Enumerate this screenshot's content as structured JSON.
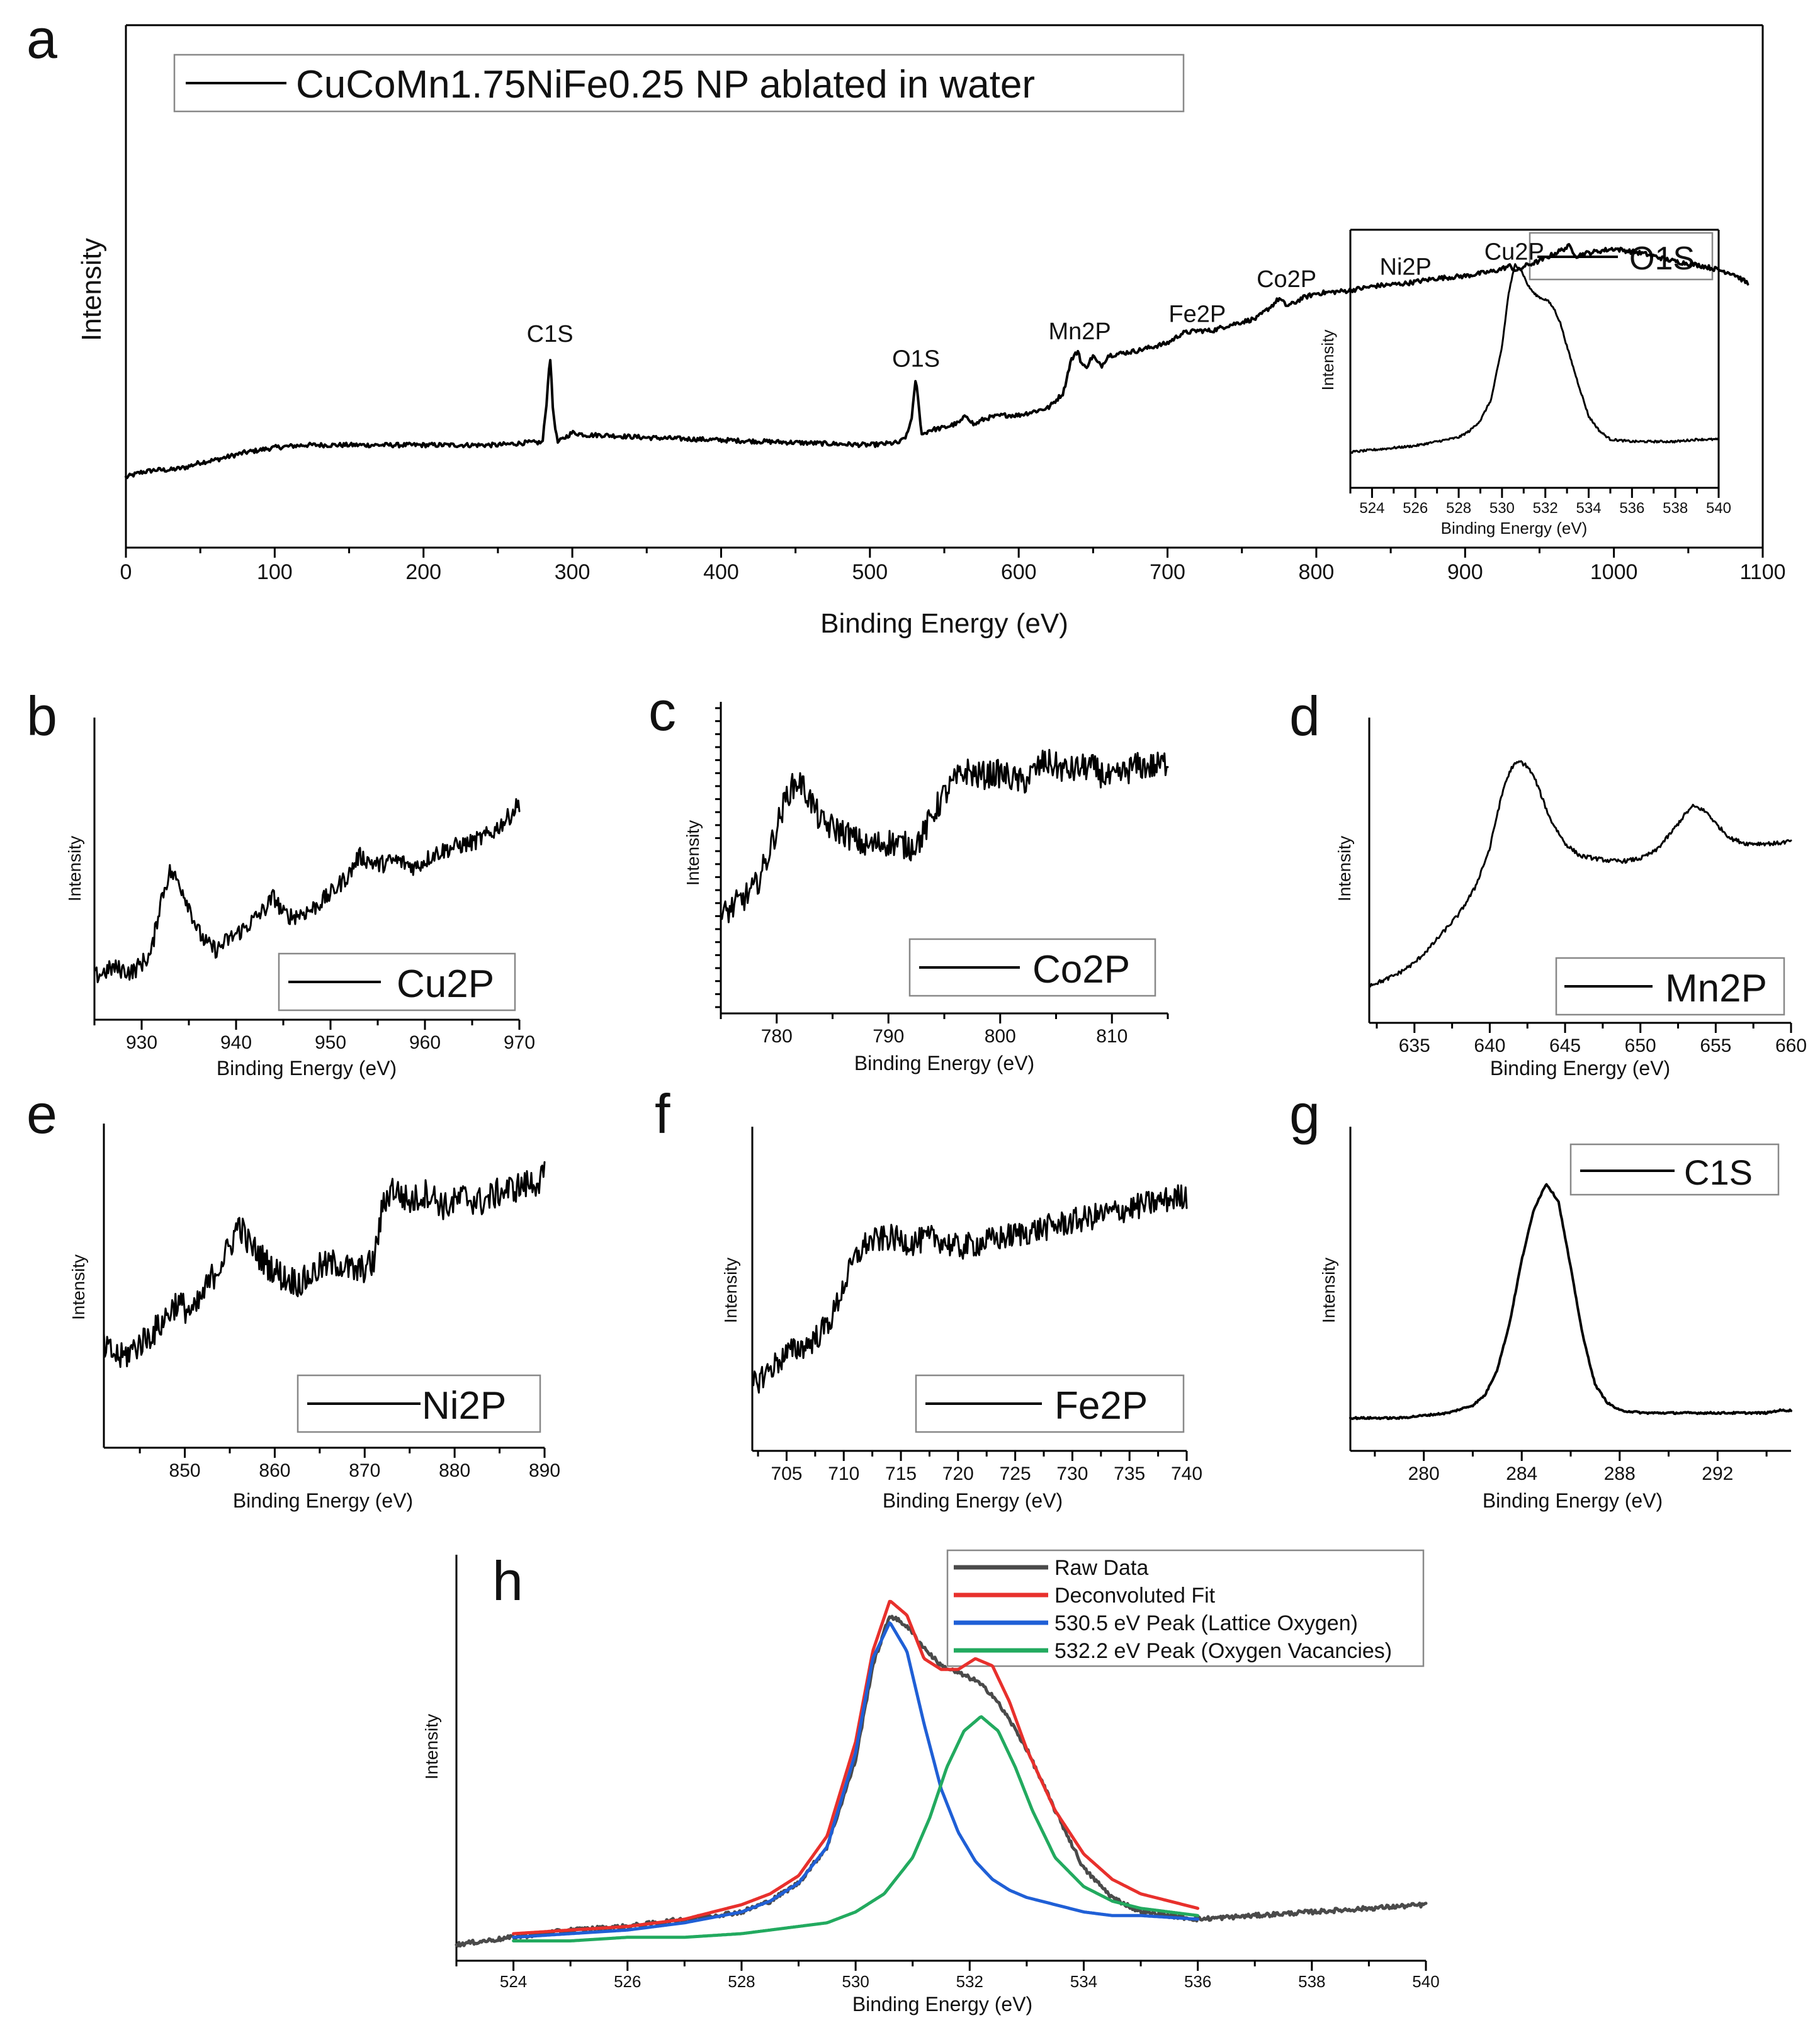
{
  "figure": {
    "panels": [
      {
        "id": "a",
        "letter": "a",
        "x_label": "Binding Energy (eV)",
        "y_label": "Intensity",
        "legend": "CuCoMn1.75NiFe0.25 NP ablated in water"
      },
      {
        "id": "a_inset",
        "x_label": "Binding Energy (eV)",
        "y_label": "Intensity",
        "legend": "O1S"
      },
      {
        "id": "b",
        "letter": "b",
        "x_label": "Binding Energy (eV)",
        "y_label": "Intensity",
        "legend": "Cu2P"
      },
      {
        "id": "c",
        "letter": "c",
        "x_label": "Binding Energy (eV)",
        "y_label": "Intensity",
        "legend": "Co2P"
      },
      {
        "id": "d",
        "letter": "d",
        "x_label": "Binding Energy (eV)",
        "y_label": "Intensity",
        "legend": "Mn2P"
      },
      {
        "id": "e",
        "letter": "e",
        "x_label": "Binding Energy (eV)",
        "y_label": "Intensity",
        "legend": "Ni2P"
      },
      {
        "id": "f",
        "letter": "f",
        "x_label": "Binding Energy (eV)",
        "y_label": "Intensity",
        "legend": "Fe2P"
      },
      {
        "id": "g",
        "letter": "g",
        "x_label": "Binding Energy (eV)",
        "y_label": "Intensity",
        "legend": "C1S"
      },
      {
        "id": "h",
        "letter": "h",
        "x_label": "Binding Energy (eV)",
        "y_label": "Intensity",
        "legend_entries": [
          "Raw Data",
          "Deconvoluted Fit",
          "530.5 eV Peak (Lattice Oxygen)",
          "532.2 eV Peak (Oxygen Vacancies)"
        ]
      }
    ]
  },
  "colors": {
    "raw_data": "#4a4a4a",
    "fit": "#e8302c",
    "lattice_oxygen": "#1f5fd6",
    "oxygen_vacancies": "#22aa5f",
    "trace": "#000000"
  },
  "chart_data": [
    {
      "panel": "a",
      "type": "line",
      "title": "",
      "xlabel": "Binding Energy (eV)",
      "ylabel": "Intensity",
      "xlim": [
        0,
        1100
      ],
      "xticks": [
        0,
        100,
        200,
        300,
        400,
        500,
        600,
        700,
        800,
        900,
        1000,
        1100
      ],
      "ylim": [
        0,
        100
      ],
      "legend": "CuCoMn1.75NiFe0.25 NP ablated in water",
      "annotations": [
        {
          "text": "C1S",
          "x": 285,
          "y": 58
        },
        {
          "text": "O1S",
          "x": 531,
          "y": 48
        },
        {
          "text": "Mn2P",
          "x": 641,
          "y": 59
        },
        {
          "text": "Fe2P",
          "x": 720,
          "y": 66
        },
        {
          "text": "Co2P",
          "x": 780,
          "y": 80
        },
        {
          "text": "Ni2P",
          "x": 860,
          "y": 85
        },
        {
          "text": "Cu2P",
          "x": 933,
          "y": 91
        }
      ],
      "x": [
        0,
        10,
        20,
        30,
        40,
        50,
        60,
        80,
        100,
        120,
        150,
        200,
        250,
        270,
        280,
        283,
        285,
        287,
        290,
        295,
        300,
        310,
        320,
        350,
        400,
        450,
        500,
        520,
        525,
        528,
        531,
        533,
        535,
        540,
        550,
        560,
        565,
        570,
        575,
        580,
        590,
        600,
        620,
        630,
        635,
        640,
        642,
        645,
        650,
        653,
        656,
        660,
        680,
        700,
        705,
        710,
        720,
        730,
        740,
        760,
        770,
        775,
        780,
        785,
        790,
        800,
        820,
        840,
        860,
        880,
        900,
        920,
        930,
        935,
        940,
        950,
        960,
        970,
        975,
        980,
        1000,
        1020,
        1040,
        1060,
        1080,
        1090
      ],
      "y": [
        8,
        10,
        11,
        11,
        12,
        14,
        15,
        18,
        20,
        21,
        21,
        21,
        21,
        22,
        22,
        40,
        58,
        35,
        22,
        24,
        26,
        25,
        25,
        24,
        23,
        22,
        21,
        22,
        25,
        32,
        48,
        35,
        25,
        27,
        28,
        30,
        33,
        29,
        31,
        32,
        33,
        33,
        36,
        42,
        55,
        59,
        54,
        52,
        57,
        54,
        53,
        57,
        59,
        62,
        64,
        66,
        67,
        67,
        69,
        72,
        77,
        80,
        77,
        78,
        80,
        82,
        83,
        85,
        86,
        88,
        89,
        91,
        93,
        91,
        93,
        95,
        98,
        101,
        97,
        98,
        100,
        98,
        95,
        93,
        90,
        86
      ]
    },
    {
      "panel": "a_inset",
      "type": "line",
      "xlabel": "Binding Energy (eV)",
      "ylabel": "Intensity",
      "xlim": [
        523,
        540
      ],
      "xticks": [
        524,
        526,
        528,
        530,
        532,
        534,
        536,
        538,
        540
      ],
      "ylim": [
        0,
        100
      ],
      "legend": "O1S",
      "x": [
        523,
        524,
        525,
        526,
        527,
        528,
        528.5,
        529,
        529.5,
        530,
        530.3,
        530.6,
        530.9,
        531.2,
        531.5,
        531.8,
        532.1,
        532.4,
        532.7,
        533,
        533.5,
        534,
        534.5,
        535,
        536,
        537,
        538,
        539,
        540
      ],
      "y": [
        5,
        6,
        7,
        8,
        10,
        12,
        15,
        20,
        30,
        55,
        80,
        94,
        91,
        84,
        80,
        78,
        77,
        73,
        66,
        55,
        38,
        22,
        15,
        11,
        10,
        10,
        10,
        11,
        11
      ]
    },
    {
      "panel": "b",
      "type": "line",
      "xlabel": "Binding Energy (eV)",
      "ylabel": "Intensity",
      "xlim": [
        925,
        970
      ],
      "xticks": [
        930,
        940,
        950,
        960,
        970
      ],
      "ylim": [
        0,
        100
      ],
      "legend": "Cu2P",
      "x": [
        925,
        927,
        929,
        931,
        932,
        933,
        934,
        935,
        936,
        937,
        938,
        939,
        941,
        943,
        944,
        945,
        946,
        948,
        950,
        952,
        953,
        955,
        957,
        959,
        961,
        963,
        965,
        967,
        969,
        970
      ],
      "y": [
        8,
        12,
        10,
        18,
        42,
        55,
        50,
        40,
        28,
        22,
        20,
        24,
        30,
        38,
        44,
        36,
        35,
        38,
        45,
        54,
        62,
        58,
        60,
        57,
        63,
        66,
        68,
        72,
        80,
        86
      ]
    },
    {
      "panel": "c",
      "type": "line",
      "xlabel": "Binding Energy (eV)",
      "ylabel": "Intensity",
      "xlim": [
        775,
        815
      ],
      "xticks": [
        780,
        790,
        800,
        810
      ],
      "ylim": [
        0,
        100
      ],
      "legend": "Co2P",
      "x": [
        775,
        776,
        777,
        778,
        779,
        780,
        781,
        782,
        783,
        784,
        786,
        788,
        790,
        792,
        793,
        794,
        795,
        796,
        797,
        798,
        800,
        802,
        804,
        806,
        808,
        810,
        812,
        814,
        815
      ],
      "y": [
        22,
        26,
        30,
        34,
        45,
        60,
        75,
        80,
        72,
        62,
        58,
        52,
        54,
        52,
        56,
        66,
        74,
        80,
        84,
        82,
        83,
        79,
        88,
        84,
        86,
        80,
        86,
        86,
        88
      ]
    },
    {
      "panel": "d",
      "type": "line",
      "xlabel": "Binding Energy (eV)",
      "ylabel": "Intensity",
      "xlim": [
        632,
        660
      ],
      "xticks": [
        635,
        640,
        645,
        650,
        655,
        660
      ],
      "ylim": [
        0,
        100
      ],
      "legend": "Mn2P",
      "x": [
        632,
        633,
        634,
        635,
        636,
        637,
        638,
        639,
        640,
        640.5,
        641,
        641.5,
        642,
        642.5,
        643,
        643.5,
        644,
        645,
        646,
        647,
        648,
        649,
        650,
        651,
        652,
        653,
        653.5,
        654,
        654.5,
        655,
        656,
        657,
        658,
        659,
        660
      ],
      "y": [
        5,
        7,
        10,
        14,
        20,
        27,
        34,
        44,
        60,
        74,
        86,
        93,
        95,
        93,
        88,
        80,
        72,
        62,
        57,
        56,
        55,
        55,
        56,
        59,
        66,
        74,
        77,
        76,
        74,
        70,
        64,
        62,
        62,
        62,
        63
      ]
    },
    {
      "panel": "e",
      "type": "line",
      "xlabel": "Binding Energy (eV)",
      "ylabel": "Intensity",
      "xlim": [
        841,
        890
      ],
      "xticks": [
        850,
        860,
        870,
        880,
        890
      ],
      "ylim": [
        0,
        100
      ],
      "legend": "Ni2P",
      "x": [
        841,
        843,
        845,
        847,
        849,
        851,
        853,
        855,
        856,
        857,
        859,
        861,
        863,
        865,
        867,
        869,
        871,
        872,
        873,
        875,
        877,
        879,
        881,
        883,
        885,
        887,
        889,
        890
      ],
      "y": [
        22,
        18,
        24,
        30,
        40,
        36,
        50,
        62,
        72,
        64,
        56,
        50,
        48,
        54,
        56,
        52,
        56,
        78,
        86,
        80,
        84,
        78,
        82,
        80,
        84,
        86,
        88,
        90
      ]
    },
    {
      "panel": "f",
      "type": "line",
      "xlabel": "Binding Energy (eV)",
      "ylabel": "Intensity",
      "xlim": [
        702,
        740
      ],
      "xticks": [
        705,
        710,
        715,
        720,
        725,
        730,
        735,
        740
      ],
      "ylim": [
        0,
        100
      ],
      "legend": "Fe2P",
      "x": [
        702,
        703,
        704,
        705,
        706,
        707,
        708,
        709,
        710,
        711,
        712,
        714,
        716,
        718,
        720,
        722,
        724,
        726,
        728,
        730,
        732,
        734,
        736,
        738,
        740
      ],
      "y": [
        14,
        18,
        22,
        26,
        28,
        30,
        34,
        40,
        52,
        62,
        68,
        70,
        68,
        70,
        66,
        68,
        70,
        72,
        74,
        76,
        78,
        80,
        82,
        84,
        86
      ]
    },
    {
      "panel": "g",
      "type": "line",
      "xlabel": "Binding Energy (eV)",
      "ylabel": "Intensity",
      "xlim": [
        277,
        295
      ],
      "xticks": [
        280,
        284,
        288,
        292
      ],
      "ylim": [
        0,
        100
      ],
      "legend": "C1S",
      "x": [
        277,
        278,
        279,
        280,
        281,
        282,
        282.5,
        283,
        283.5,
        284,
        284.5,
        285,
        285.5,
        286,
        286.5,
        287,
        287.5,
        288,
        289,
        290,
        291,
        292,
        293,
        294,
        294.5,
        295
      ],
      "y": [
        3,
        3,
        3,
        4,
        5,
        8,
        12,
        22,
        40,
        65,
        85,
        95,
        88,
        62,
        35,
        16,
        9,
        6,
        5,
        5,
        5,
        5,
        5,
        5,
        6,
        6
      ]
    },
    {
      "panel": "h",
      "type": "line",
      "xlabel": "Binding Energy (eV)",
      "ylabel": "Intensity",
      "xlim": [
        523,
        540
      ],
      "xticks": [
        524,
        526,
        528,
        530,
        532,
        534,
        536,
        538,
        540
      ],
      "ylim": [
        0,
        100
      ],
      "series": [
        {
          "name": "Raw Data",
          "x": [
            523,
            524,
            525,
            526,
            527,
            528,
            528.5,
            529,
            529.5,
            530,
            530.3,
            530.6,
            530.9,
            531.2,
            531.5,
            531.8,
            532.1,
            532.4,
            532.7,
            533,
            533.5,
            534,
            534.5,
            535,
            536,
            537,
            538,
            539,
            540
          ],
          "y": [
            1,
            3,
            5,
            6,
            8,
            10,
            13,
            18,
            28,
            52,
            78,
            92,
            89,
            83,
            78,
            76,
            74,
            70,
            63,
            55,
            38,
            22,
            14,
            10,
            8,
            9,
            10,
            11,
            12
          ]
        },
        {
          "name": "Deconvoluted Fit",
          "x": [
            524,
            525,
            526,
            527,
            528,
            528.5,
            529,
            529.5,
            530,
            530.3,
            530.6,
            530.9,
            531.2,
            531.5,
            531.8,
            532.1,
            532.4,
            532.7,
            533,
            533.5,
            534,
            534.5,
            535,
            536
          ],
          "y": [
            4,
            5,
            6,
            8,
            12,
            15,
            20,
            31,
            57,
            82,
            96,
            92,
            80,
            77,
            77,
            80,
            78,
            68,
            55,
            38,
            26,
            19,
            15,
            11
          ]
        },
        {
          "name": "530.5 eV Peak (Lattice Oxygen)",
          "x": [
            524,
            525,
            526,
            527,
            528,
            528.5,
            529,
            529.5,
            530,
            530.3,
            530.6,
            530.9,
            531.2,
            531.5,
            531.8,
            532.1,
            532.4,
            532.7,
            533,
            533.5,
            534,
            534.5,
            535,
            536
          ],
          "y": [
            3,
            4,
            5,
            7,
            10,
            13,
            18,
            28,
            54,
            80,
            90,
            82,
            62,
            44,
            32,
            24,
            19,
            16,
            14,
            12,
            10,
            9,
            9,
            8
          ]
        },
        {
          "name": "532.2 eV Peak (Oxygen Vacancies)",
          "x": [
            524,
            525,
            526,
            527,
            528,
            528.5,
            529,
            529.5,
            530,
            530.5,
            531,
            531.3,
            531.6,
            531.9,
            532.2,
            532.5,
            532.8,
            533.1,
            533.5,
            534,
            534.5,
            535,
            536
          ],
          "y": [
            2,
            2,
            3,
            3,
            4,
            5,
            6,
            7,
            10,
            15,
            25,
            36,
            50,
            60,
            64,
            60,
            50,
            38,
            25,
            17,
            13,
            11,
            9
          ]
        }
      ]
    }
  ]
}
